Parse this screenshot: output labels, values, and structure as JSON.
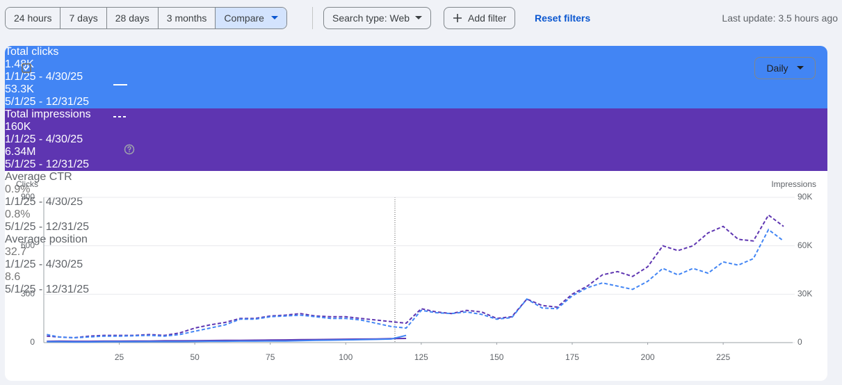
{
  "toolbar": {
    "ranges": [
      "24 hours",
      "7 days",
      "28 days",
      "3 months",
      "Compare"
    ],
    "active_range": 4,
    "search_type": "Search type: Web",
    "add_filter": "Add filter",
    "reset": "Reset filters",
    "last_update": "Last update: 3.5 hours ago"
  },
  "cards": [
    {
      "label": "Total clicks",
      "checked": true,
      "color": "#4285f4",
      "current": "1.48K",
      "current_range": "1/1/25 - 4/30/25",
      "previous": "53.3K",
      "previous_range": "5/1/25 - 12/31/25"
    },
    {
      "label": "Total impressions",
      "checked": true,
      "color": "#5e35b1",
      "current": "160K",
      "current_range": "1/1/25 - 4/30/25",
      "previous": "6.34M",
      "previous_range": "5/1/25 - 12/31/25"
    },
    {
      "label": "Average CTR",
      "checked": false,
      "current": "0.9%",
      "current_range": "1/1/25 - 4/30/25",
      "previous": "0.8%",
      "previous_range": "5/1/25 - 12/31/25"
    },
    {
      "label": "Average position",
      "checked": false,
      "current": "32.7",
      "current_range": "1/1/25 - 4/30/25",
      "previous": "8.6",
      "previous_range": "5/1/25 - 12/31/25"
    }
  ],
  "granularity": "Daily",
  "chart_data": {
    "type": "line",
    "y_label": "Clicks",
    "y2_label": "Impressions",
    "x": [
      1,
      5,
      10,
      15,
      20,
      25,
      30,
      35,
      40,
      45,
      50,
      55,
      60,
      65,
      70,
      75,
      80,
      85,
      90,
      95,
      100,
      105,
      110,
      115,
      120,
      125,
      130,
      135,
      140,
      145,
      150,
      155,
      160,
      165,
      170,
      175,
      180,
      185,
      190,
      195,
      200,
      205,
      210,
      215,
      220,
      225,
      230,
      235,
      240,
      245
    ],
    "xlim": [
      0,
      248
    ],
    "xticks": [
      25,
      50,
      75,
      100,
      125,
      150,
      175,
      200,
      225
    ],
    "ylim": [
      0,
      900
    ],
    "yticks": [
      0,
      300,
      600,
      900
    ],
    "y2lim": [
      0,
      90000
    ],
    "y2ticks": [
      0,
      {
        "value": 30000,
        "label": "30K"
      },
      {
        "value": 60000,
        "label": "60K"
      },
      {
        "value": 90000,
        "label": "90K"
      }
    ],
    "grid": true,
    "series": [
      {
        "color": "#5e35b1",
        "dashed": true,
        "axis": "y2",
        "values": [
          4000,
          3500,
          3000,
          4000,
          4500,
          4500,
          4500,
          5000,
          4500,
          6000,
          9000,
          11000,
          12500,
          15000,
          15000,
          16500,
          17000,
          18000,
          16500,
          16000,
          16000,
          15000,
          14000,
          13000,
          12000,
          21000,
          19000,
          18000,
          20000,
          19000,
          15000,
          16000,
          27000,
          23000,
          22000,
          30000,
          35000,
          42000,
          44000,
          41000,
          47000,
          60000,
          57000,
          60000,
          68000,
          72000,
          64000,
          63000,
          79000,
          72000
        ]
      },
      {
        "color": "#4285f4",
        "dashed": true,
        "values": [
          50,
          35,
          30,
          35,
          40,
          40,
          42,
          45,
          40,
          50,
          70,
          90,
          110,
          145,
          145,
          160,
          165,
          170,
          160,
          150,
          150,
          140,
          120,
          100,
          90,
          200,
          185,
          180,
          190,
          175,
          145,
          155,
          270,
          215,
          210,
          290,
          340,
          370,
          350,
          330,
          380,
          460,
          420,
          460,
          430,
          500,
          480,
          520,
          700,
          630
        ]
      },
      {
        "color": "#5e35b1",
        "dashed": false,
        "axis": "y2",
        "values": [
          800,
          900,
          800,
          800,
          900,
          900,
          1000,
          1000,
          1100,
          1100,
          1200,
          1300,
          1400,
          1400,
          1500,
          1600,
          1700,
          1800,
          1900,
          2000,
          2100,
          2200,
          2300,
          2500,
          2600,
          null,
          null,
          null,
          null,
          null,
          null,
          null,
          null,
          null,
          null,
          null,
          null,
          null,
          null,
          null,
          null,
          null,
          null,
          null,
          null,
          null,
          null,
          null,
          null,
          null
        ]
      },
      {
        "color": "#4285f4",
        "dashed": false,
        "values": [
          5,
          5,
          4,
          4,
          5,
          5,
          5,
          6,
          6,
          6,
          7,
          8,
          8,
          9,
          9,
          10,
          10,
          12,
          14,
          15,
          17,
          18,
          20,
          22,
          45,
          null,
          null,
          null,
          null,
          null,
          null,
          null,
          null,
          null,
          null,
          null,
          null,
          null,
          null,
          null,
          null,
          null,
          null,
          null,
          null,
          null,
          null,
          null,
          null,
          null
        ]
      }
    ]
  }
}
